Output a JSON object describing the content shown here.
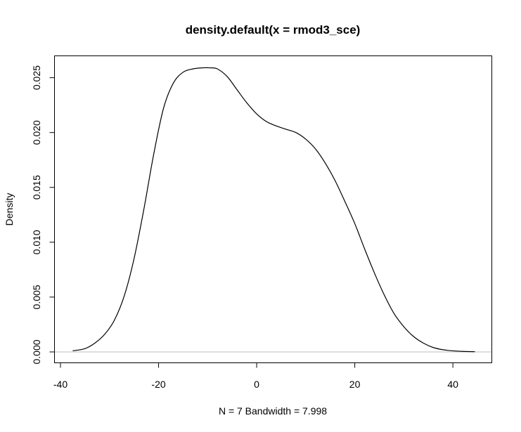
{
  "chart_data": {
    "type": "line",
    "title": "density.default(x = rmod3_sce)",
    "xlabel": "N = 7   Bandwidth = 7.998",
    "ylabel": "Density",
    "xlim": [
      -40,
      45
    ],
    "ylim": [
      0,
      0.026
    ],
    "x_ticks": [
      -40,
      -20,
      0,
      20,
      40
    ],
    "x_tick_labels": [
      "-40",
      "-20",
      "0",
      "20",
      "40"
    ],
    "y_ticks": [
      0,
      0.005,
      0.01,
      0.015,
      0.02,
      0.025
    ],
    "y_tick_labels": [
      "0.000",
      "0.005",
      "0.010",
      "0.015",
      "0.020",
      "0.025"
    ],
    "grid": false,
    "baseline": 0,
    "series": [
      {
        "x": [
          -37.5,
          -35,
          -33,
          -31,
          -29,
          -27,
          -25,
          -23,
          -21,
          -19,
          -17,
          -15,
          -13,
          -11,
          -9.5,
          -8,
          -6,
          -4,
          -2,
          0,
          2,
          4,
          6,
          8,
          10,
          12,
          14,
          16,
          18,
          20,
          22,
          24,
          26,
          28,
          30,
          32,
          34,
          36,
          38,
          40,
          42,
          44.5
        ],
        "y": [
          0.0001,
          0.0003,
          0.0008,
          0.0016,
          0.0029,
          0.0051,
          0.0085,
          0.013,
          0.018,
          0.0222,
          0.0245,
          0.0255,
          0.0258,
          0.0259,
          0.0259,
          0.0258,
          0.0251,
          0.0239,
          0.0227,
          0.0217,
          0.021,
          0.0206,
          0.0203,
          0.02,
          0.0194,
          0.0185,
          0.0172,
          0.0156,
          0.0137,
          0.0117,
          0.0094,
          0.0072,
          0.0052,
          0.0035,
          0.0023,
          0.0014,
          0.0008,
          0.0004,
          0.0002,
          0.0001,
          5e-05,
          2e-05
        ]
      }
    ]
  }
}
